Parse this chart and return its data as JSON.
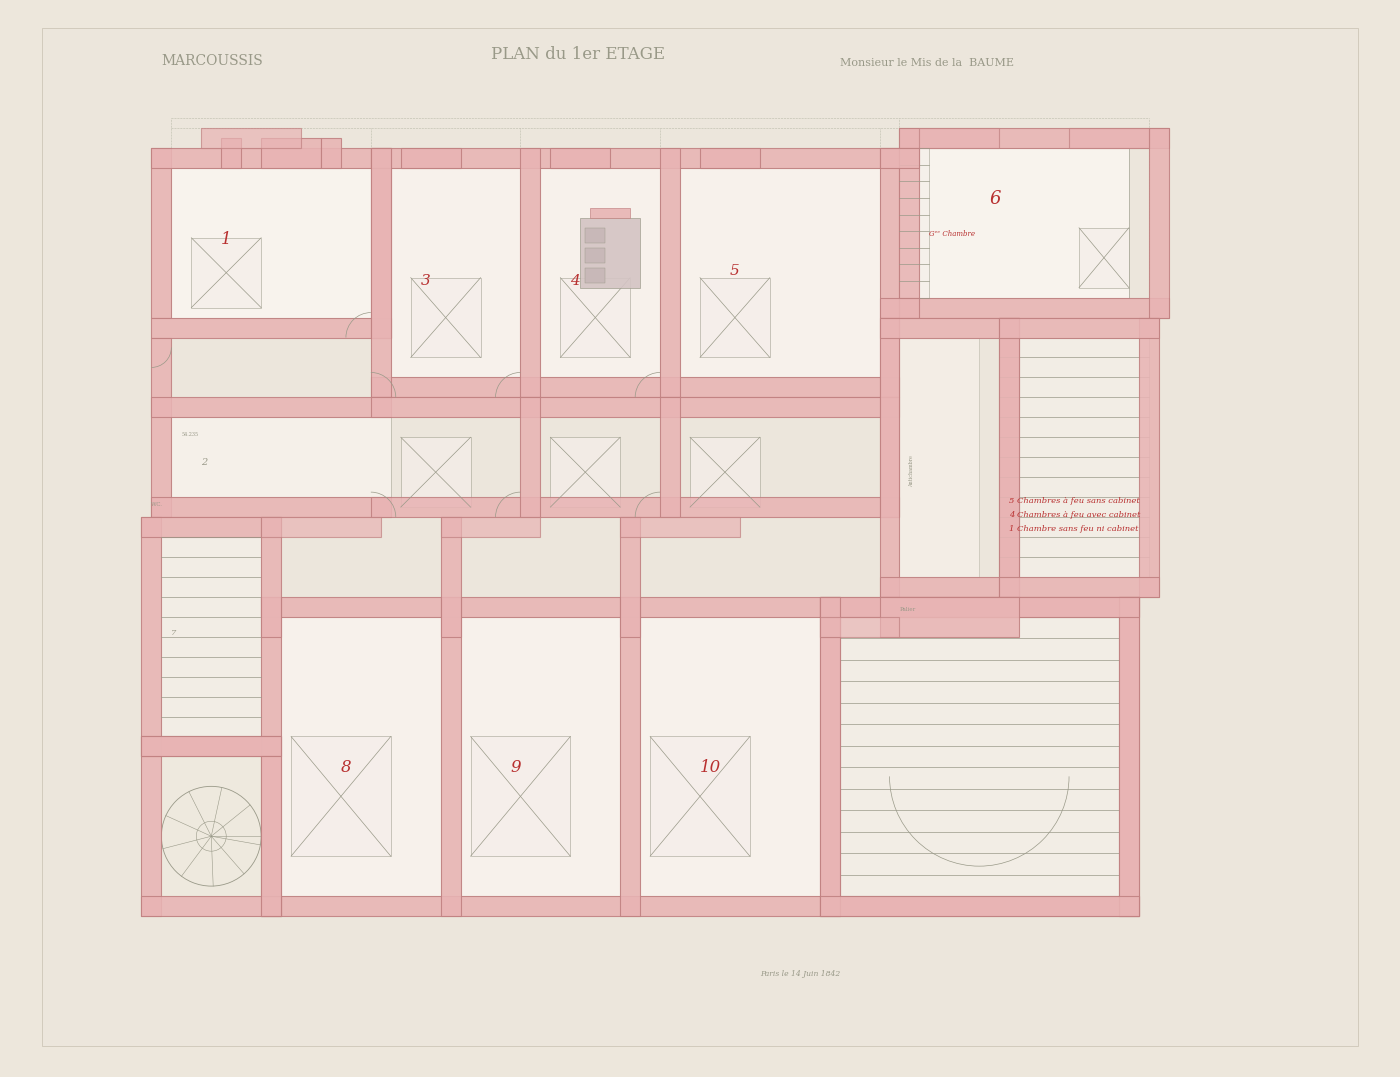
{
  "bg_color": "#ede7dc",
  "paper_color": "#ece6dc",
  "wall_fill": "#e8b4b4",
  "wall_edge": "#c08080",
  "line_color": "#999988",
  "thin_line": "#bbbbaa",
  "red_color": "#b83030",
  "pencil_color": "#999988",
  "title_left": "MARCOUSSIS",
  "title_center": "PLAN du 1er ETAGE",
  "title_right": "Monsieur le Mis de la  BAUME",
  "legend": "5 Chambres à feu sans cabinet\n4 Chambres à feu avec cabinet\n1 Chambre sans feu ni cabinet",
  "note": "Paris le 14 Juin 1842"
}
